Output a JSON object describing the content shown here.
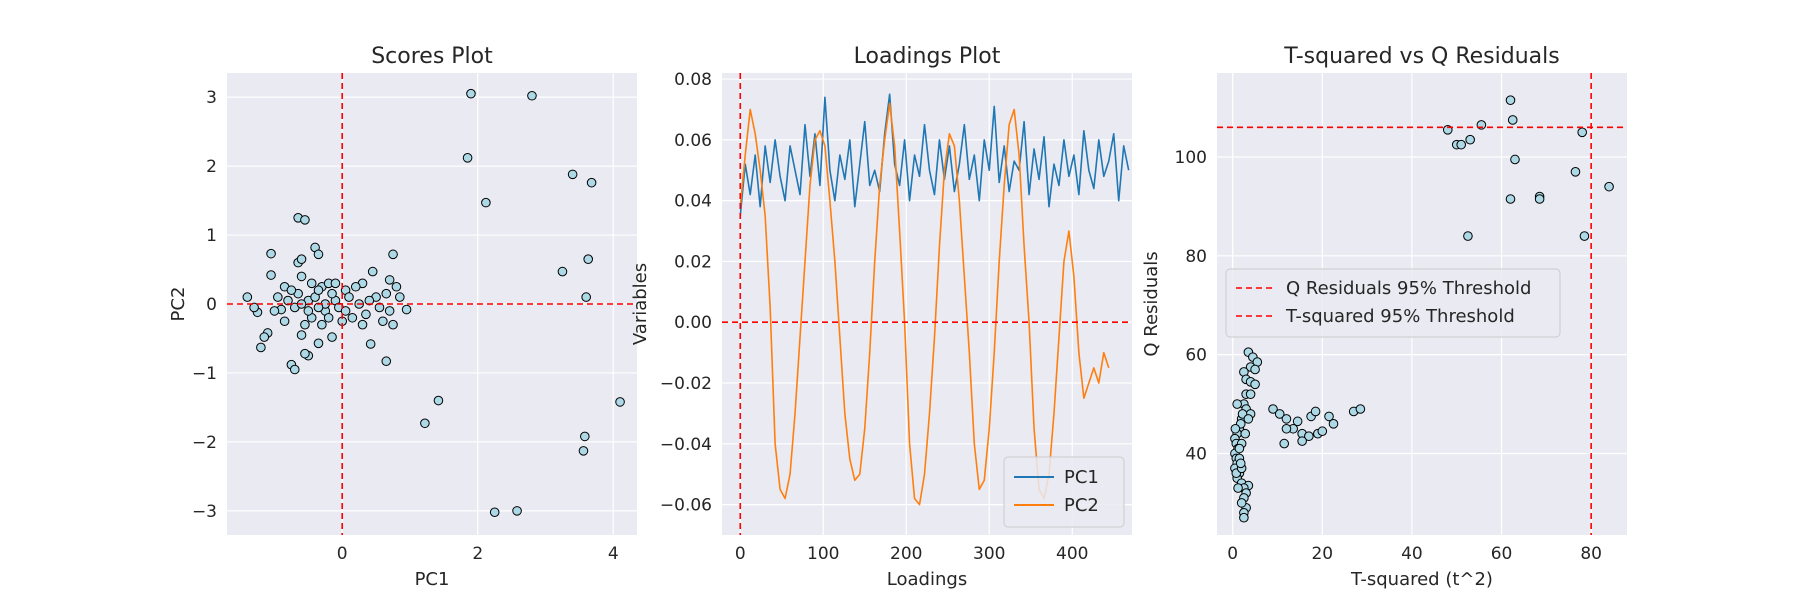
{
  "figure": {
    "background": "#ffffff",
    "axes_background": "#eaeaf2",
    "grid_color": "#ffffff",
    "threshold_color": "#ff0000",
    "marker_fill": "#add8e6",
    "marker_edge": "#000000"
  },
  "chart_data": [
    {
      "type": "scatter",
      "title": "Scores Plot",
      "xlabel": "PC1",
      "ylabel": "PC2",
      "xlim": [
        -1.7,
        4.35
      ],
      "ylim": [
        -3.35,
        3.35
      ],
      "xticks": [
        0,
        2,
        4
      ],
      "yticks": [
        -3,
        -2,
        -1,
        0,
        1,
        2,
        3
      ],
      "grid": true,
      "reference_lines": {
        "x": 0,
        "y": 0
      },
      "points": [
        [
          1.9,
          3.05
        ],
        [
          2.8,
          3.02
        ],
        [
          1.85,
          2.12
        ],
        [
          2.12,
          1.47
        ],
        [
          3.4,
          1.88
        ],
        [
          3.68,
          1.76
        ],
        [
          3.25,
          0.47
        ],
        [
          3.63,
          0.65
        ],
        [
          3.6,
          0.1
        ],
        [
          4.1,
          -1.42
        ],
        [
          1.42,
          -1.4
        ],
        [
          1.22,
          -1.73
        ],
        [
          3.58,
          -1.92
        ],
        [
          3.56,
          -2.13
        ],
        [
          2.25,
          -3.02
        ],
        [
          2.58,
          -3.0
        ],
        [
          -0.65,
          1.25
        ],
        [
          -0.55,
          1.22
        ],
        [
          -1.05,
          0.73
        ],
        [
          -0.4,
          0.82
        ],
        [
          -0.35,
          0.72
        ],
        [
          0.75,
          0.72
        ],
        [
          -0.65,
          0.6
        ],
        [
          -0.6,
          0.65
        ],
        [
          0.45,
          0.47
        ],
        [
          -0.85,
          0.25
        ],
        [
          -1.4,
          0.1
        ],
        [
          -1.25,
          -0.12
        ],
        [
          -1.1,
          -0.42
        ],
        [
          -1.15,
          -0.48
        ],
        [
          -1.2,
          -0.63
        ],
        [
          -0.75,
          -0.88
        ],
        [
          -0.7,
          -0.95
        ],
        [
          -0.5,
          -0.75
        ],
        [
          -0.55,
          -0.72
        ],
        [
          -0.35,
          -0.57
        ],
        [
          0.42,
          -0.58
        ],
        [
          0.65,
          -0.83
        ],
        [
          0.75,
          -0.3
        ],
        [
          0.6,
          -0.25
        ],
        [
          -0.15,
          -0.48
        ],
        [
          -0.6,
          -0.45
        ],
        [
          0.95,
          -0.08
        ],
        [
          0.3,
          0.3
        ],
        [
          0.7,
          0.35
        ],
        [
          0.8,
          0.25
        ],
        [
          -0.6,
          0.4
        ],
        [
          -1.05,
          0.42
        ],
        [
          -0.95,
          0.1
        ],
        [
          -0.3,
          0.25
        ],
        [
          -0.8,
          0.05
        ],
        [
          -0.9,
          -0.08
        ],
        [
          -0.7,
          -0.05
        ],
        [
          -0.5,
          0.05
        ],
        [
          -0.4,
          0.1
        ],
        [
          -0.25,
          -0.1
        ],
        [
          -0.1,
          0.05
        ],
        [
          0.05,
          0.2
        ],
        [
          0.15,
          -0.2
        ],
        [
          0.25,
          0.0
        ],
        [
          0.5,
          0.1
        ],
        [
          0.65,
          0.15
        ],
        [
          -0.45,
          -0.2
        ],
        [
          -0.35,
          0.2
        ],
        [
          -0.2,
          0.3
        ],
        [
          0.0,
          -0.25
        ],
        [
          -0.55,
          -0.3
        ],
        [
          -0.15,
          0.15
        ],
        [
          0.1,
          0.1
        ],
        [
          -0.65,
          0.15
        ],
        [
          -1.3,
          -0.05
        ],
        [
          -0.3,
          -0.3
        ],
        [
          0.35,
          -0.15
        ],
        [
          0.55,
          -0.05
        ],
        [
          0.85,
          0.1
        ],
        [
          -0.05,
          -0.05
        ],
        [
          -0.75,
          0.2
        ],
        [
          -0.25,
          0.0
        ],
        [
          0.2,
          0.25
        ],
        [
          -0.5,
          -0.1
        ],
        [
          0.4,
          0.05
        ],
        [
          -0.1,
          0.3
        ],
        [
          -0.85,
          -0.25
        ],
        [
          0.05,
          -0.1
        ],
        [
          -0.45,
          0.3
        ],
        [
          0.3,
          -0.3
        ],
        [
          0.7,
          -0.1
        ],
        [
          -0.2,
          -0.2
        ],
        [
          -1.0,
          -0.1
        ],
        [
          -0.6,
          0.0
        ],
        [
          -0.35,
          -0.05
        ]
      ]
    },
    {
      "type": "line",
      "title": "Loadings Plot",
      "xlabel": "Loadings",
      "ylabel": "Variables",
      "xlim": [
        -22,
        472
      ],
      "ylim": [
        -0.07,
        0.082
      ],
      "xticks": [
        0,
        100,
        200,
        300,
        400
      ],
      "yticks": [
        -0.06,
        -0.04,
        -0.02,
        0.0,
        0.02,
        0.04,
        0.06,
        0.08
      ],
      "ytick_labels": [
        "−0.06",
        "−0.04",
        "−0.02",
        "0.00",
        "0.02",
        "0.04",
        "0.06",
        "0.08"
      ],
      "grid": true,
      "reference_lines": {
        "x": 0,
        "y": 0
      },
      "legend_position": "lower-right",
      "series": [
        {
          "name": "PC1",
          "color": "#1f77b4",
          "x_start": 0,
          "x_step": 6,
          "values": [
            0.035,
            0.052,
            0.042,
            0.055,
            0.038,
            0.058,
            0.046,
            0.06,
            0.048,
            0.04,
            0.058,
            0.05,
            0.042,
            0.065,
            0.048,
            0.062,
            0.045,
            0.074,
            0.05,
            0.04,
            0.055,
            0.047,
            0.06,
            0.038,
            0.052,
            0.066,
            0.045,
            0.05,
            0.043,
            0.062,
            0.075,
            0.052,
            0.045,
            0.06,
            0.04,
            0.055,
            0.048,
            0.065,
            0.05,
            0.042,
            0.06,
            0.047,
            0.058,
            0.043,
            0.052,
            0.065,
            0.047,
            0.055,
            0.04,
            0.06,
            0.05,
            0.071,
            0.046,
            0.058,
            0.043,
            0.053,
            0.05,
            0.066,
            0.042,
            0.057,
            0.047,
            0.061,
            0.038,
            0.052,
            0.045,
            0.06,
            0.048,
            0.055,
            0.042,
            0.063,
            0.05,
            0.044,
            0.06,
            0.048,
            0.053,
            0.062,
            0.04,
            0.058,
            0.05
          ]
        },
        {
          "name": "PC2",
          "color": "#ff7f0e",
          "x_start": 0,
          "x_step": 6,
          "values": [
            0.038,
            0.055,
            0.07,
            0.062,
            0.05,
            0.035,
            0.005,
            -0.04,
            -0.055,
            -0.058,
            -0.05,
            -0.03,
            -0.005,
            0.02,
            0.045,
            0.06,
            0.063,
            0.058,
            0.04,
            0.02,
            -0.005,
            -0.03,
            -0.045,
            -0.052,
            -0.05,
            -0.035,
            -0.01,
            0.02,
            0.045,
            0.06,
            0.072,
            0.058,
            0.03,
            0.0,
            -0.04,
            -0.058,
            -0.06,
            -0.05,
            -0.03,
            -0.005,
            0.025,
            0.05,
            0.062,
            0.058,
            0.04,
            0.015,
            -0.01,
            -0.04,
            -0.055,
            -0.052,
            -0.035,
            -0.01,
            0.02,
            0.045,
            0.065,
            0.07,
            0.055,
            0.025,
            0.0,
            -0.035,
            -0.055,
            -0.058,
            -0.05,
            -0.03,
            -0.005,
            0.02,
            0.03,
            0.015,
            -0.01,
            -0.025,
            -0.02,
            -0.015,
            -0.02,
            -0.01,
            -0.015
          ]
        }
      ]
    },
    {
      "type": "scatter",
      "title": "T-squared vs Q Residuals",
      "xlabel": "T-squared (t^2)",
      "ylabel": "Q Residuals",
      "xlim": [
        -3.5,
        88
      ],
      "ylim": [
        23.5,
        117
      ],
      "xticks": [
        0,
        20,
        40,
        60,
        80
      ],
      "yticks": [
        40,
        60,
        80,
        100
      ],
      "grid": true,
      "threshold_lines": [
        {
          "name": "Q Residuals 95% Threshold",
          "axis": "y",
          "value": 106
        },
        {
          "name": "T-squared 95% Threshold",
          "axis": "x",
          "value": 80
        }
      ],
      "legend_position": "center-left",
      "points": [
        [
          48,
          105.5
        ],
        [
          50,
          102.5
        ],
        [
          51,
          102.5
        ],
        [
          53,
          103.5
        ],
        [
          55.5,
          106.5
        ],
        [
          62,
          111.5
        ],
        [
          62.5,
          107.5
        ],
        [
          63,
          99.5
        ],
        [
          52.5,
          84
        ],
        [
          62,
          91.5
        ],
        [
          68.5,
          92
        ],
        [
          68.5,
          91.5
        ],
        [
          76.5,
          97
        ],
        [
          78,
          105
        ],
        [
          78.5,
          84
        ],
        [
          84,
          94
        ],
        [
          3.5,
          60.5
        ],
        [
          4.5,
          59.5
        ],
        [
          5.5,
          58.5
        ],
        [
          4.0,
          57.5
        ],
        [
          5.0,
          57
        ],
        [
          2.5,
          56.5
        ],
        [
          3.0,
          55
        ],
        [
          4.0,
          54.5
        ],
        [
          5.0,
          54
        ],
        [
          3.0,
          52
        ],
        [
          2.5,
          50
        ],
        [
          9.0,
          49
        ],
        [
          10.5,
          48
        ],
        [
          12.0,
          47
        ],
        [
          14.5,
          46.5
        ],
        [
          17.5,
          47.5
        ],
        [
          18.5,
          48.5
        ],
        [
          21.5,
          47.5
        ],
        [
          22.5,
          46
        ],
        [
          27.0,
          48.5
        ],
        [
          28.5,
          49
        ],
        [
          13.5,
          45
        ],
        [
          15.5,
          44
        ],
        [
          19.0,
          44
        ],
        [
          20.0,
          44.5
        ],
        [
          17.0,
          43.5
        ],
        [
          15.5,
          42.5
        ],
        [
          11.5,
          42
        ],
        [
          12.0,
          45
        ],
        [
          3.0,
          49
        ],
        [
          4.0,
          48
        ],
        [
          2.0,
          47
        ],
        [
          1.5,
          45
        ],
        [
          1.0,
          44
        ],
        [
          0.5,
          43
        ],
        [
          0.8,
          42
        ],
        [
          1.2,
          41
        ],
        [
          0.5,
          40
        ],
        [
          0.8,
          39
        ],
        [
          1.0,
          38
        ],
        [
          0.5,
          37
        ],
        [
          1.5,
          36
        ],
        [
          1.0,
          35
        ],
        [
          2.0,
          34
        ],
        [
          3.5,
          33.5
        ],
        [
          2.5,
          33
        ],
        [
          3.0,
          32
        ],
        [
          2.5,
          31
        ],
        [
          3.0,
          29
        ],
        [
          2.5,
          28
        ],
        [
          2.5,
          27
        ],
        [
          2.0,
          30
        ],
        [
          1.5,
          39
        ],
        [
          2.0,
          42
        ],
        [
          1.8,
          46
        ],
        [
          2.2,
          48
        ],
        [
          1.0,
          50
        ],
        [
          4.0,
          52
        ],
        [
          3.5,
          47
        ],
        [
          2.8,
          44
        ],
        [
          1.5,
          41
        ],
        [
          0.8,
          36
        ],
        [
          1.2,
          33
        ],
        [
          2.0,
          37
        ],
        [
          0.6,
          45
        ],
        [
          1.8,
          38
        ]
      ]
    }
  ]
}
